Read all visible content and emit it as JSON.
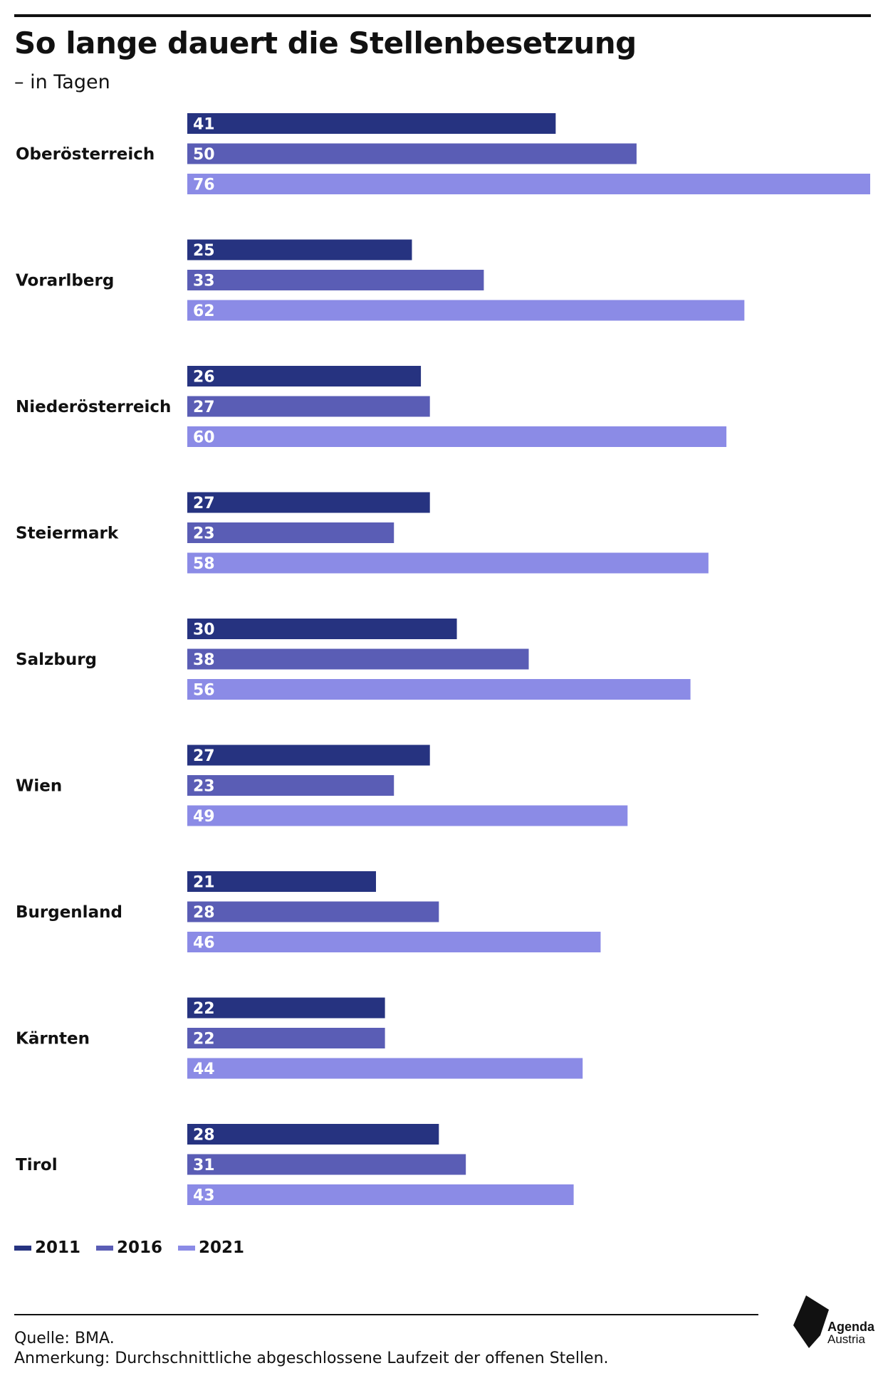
{
  "header": {
    "title": "So lange dauert die Stellenbesetzung",
    "subtitle": "– in Tagen"
  },
  "chart_data": {
    "type": "bar",
    "orientation": "horizontal",
    "title": "So lange dauert die Stellenbesetzung",
    "subtitle": "– in Tagen",
    "categories": [
      "Oberösterreich",
      "Vorarlberg",
      "Niederösterreich",
      "Steiermark",
      "Salzburg",
      "Wien",
      "Burgenland",
      "Kärnten",
      "Tirol"
    ],
    "series": [
      {
        "name": "2011",
        "color": "#263380",
        "values": [
          41,
          25,
          26,
          27,
          30,
          27,
          21,
          22,
          28
        ]
      },
      {
        "name": "2016",
        "color": "#5a5db5",
        "values": [
          50,
          33,
          27,
          23,
          38,
          23,
          28,
          22,
          31
        ]
      },
      {
        "name": "2021",
        "color": "#8b8be6",
        "values": [
          76,
          62,
          60,
          58,
          56,
          49,
          46,
          44,
          43
        ]
      }
    ],
    "xlim": [
      0,
      76
    ],
    "data_labels": "inside-start",
    "grid": false,
    "legend": "bottom-left"
  },
  "legend": {
    "items": [
      {
        "label": "2011",
        "color": "#263380"
      },
      {
        "label": "2016",
        "color": "#5a5db5"
      },
      {
        "label": "2021",
        "color": "#8b8be6"
      }
    ]
  },
  "footer": {
    "source": "Quelle: BMA.",
    "note": "Anmerkung: Durchschnittliche abgeschlossene Laufzeit der offenen Stellen."
  },
  "logo": {
    "line1": "Agenda",
    "line2": "Austria"
  }
}
